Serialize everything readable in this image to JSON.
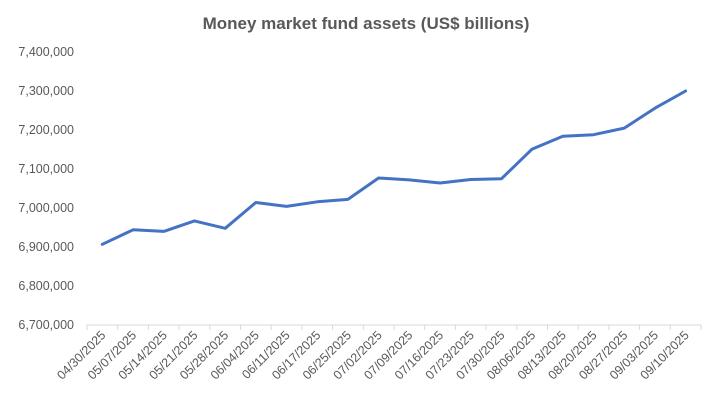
{
  "chart_data": {
    "type": "line",
    "title": "Money market fund assets (US$ billions)",
    "xlabel": "",
    "ylabel": "",
    "ylim": [
      6700000,
      7400000
    ],
    "yticks": [
      "6,700,000",
      "6,800,000",
      "6,900,000",
      "7,000,000",
      "7,100,000",
      "7,200,000",
      "7,300,000",
      "7,400,000"
    ],
    "grid": false,
    "legend": "none",
    "line_color": "#4472C4",
    "categories": [
      "04/30/2025",
      "05/07/2025",
      "05/14/2025",
      "05/21/2025",
      "05/28/2025",
      "06/04/2025",
      "06/11/2025",
      "06/17/2025",
      "06/25/2025",
      "07/02/2025",
      "07/09/2025",
      "07/16/2025",
      "07/23/2025",
      "07/30/2025",
      "08/06/2025",
      "08/13/2025",
      "08/20/2025",
      "08/27/2025",
      "09/03/2025",
      "09/10/2025"
    ],
    "plotted_dates": [
      "04/30/2025",
      "05/07/2025",
      "05/14/2025",
      "05/21/2025",
      "05/28/2025",
      "06/04/2025",
      "06/11/2025",
      "06/17/2025",
      "06/25/2025",
      "07/02/2025",
      "07/09/2025",
      "07/16/2025",
      "07/23/2025",
      "07/30/2025",
      "08/06/2025",
      "08/13/2025",
      "08/20/2025",
      "08/27/2025",
      "09/03/2025",
      "09/10/2025"
    ],
    "values": [
      6907000,
      6944000,
      6940000,
      6967000,
      6948000,
      7014000,
      7004000,
      7016000,
      7022000,
      7077000,
      7072000,
      7064000,
      7073000,
      7075000,
      7151000,
      7184000,
      7188000,
      7205000,
      7256000,
      7300000
    ]
  }
}
